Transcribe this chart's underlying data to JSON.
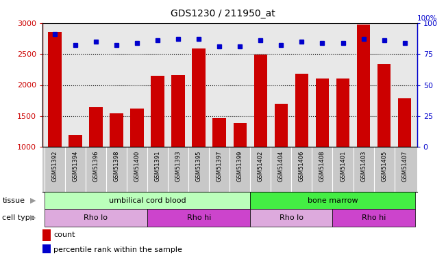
{
  "title": "GDS1230 / 211950_at",
  "samples": [
    "GSM51392",
    "GSM51394",
    "GSM51396",
    "GSM51398",
    "GSM51400",
    "GSM51391",
    "GSM51393",
    "GSM51395",
    "GSM51397",
    "GSM51399",
    "GSM51402",
    "GSM51404",
    "GSM51406",
    "GSM51408",
    "GSM51401",
    "GSM51403",
    "GSM51405",
    "GSM51407"
  ],
  "counts": [
    2850,
    1190,
    1640,
    1545,
    1615,
    2150,
    2160,
    2590,
    1470,
    1390,
    2490,
    1700,
    2180,
    2110,
    2100,
    2970,
    2340,
    1790
  ],
  "percentile": [
    91,
    82,
    85,
    82,
    84,
    86,
    87,
    87,
    81,
    81,
    86,
    82,
    85,
    84,
    84,
    87,
    86,
    84
  ],
  "bar_color": "#cc0000",
  "dot_color": "#0000cc",
  "ylim_left": [
    1000,
    3000
  ],
  "ylim_right": [
    0,
    100
  ],
  "yticks_left": [
    1000,
    1500,
    2000,
    2500,
    3000
  ],
  "yticks_right": [
    0,
    25,
    50,
    75,
    100
  ],
  "tissue_groups": [
    {
      "label": "umbilical cord blood",
      "start": 0,
      "end": 10,
      "color": "#bbffbb"
    },
    {
      "label": "bone marrow",
      "start": 10,
      "end": 18,
      "color": "#44ee44"
    }
  ],
  "cell_type_groups": [
    {
      "label": "Rho lo",
      "start": 0,
      "end": 5,
      "color": "#ddaadd"
    },
    {
      "label": "Rho hi",
      "start": 5,
      "end": 10,
      "color": "#cc44cc"
    },
    {
      "label": "Rho lo",
      "start": 10,
      "end": 14,
      "color": "#ddaadd"
    },
    {
      "label": "Rho hi",
      "start": 14,
      "end": 18,
      "color": "#cc44cc"
    }
  ],
  "legend_count_color": "#cc0000",
  "legend_dot_color": "#0000cc",
  "axis_color_left": "#cc0000",
  "axis_color_right": "#0000cc",
  "bar_width": 0.65,
  "plot_bg": "#e8e8e8",
  "xlabel_bg": "#c8c8c8",
  "fig_bg": "#ffffff"
}
